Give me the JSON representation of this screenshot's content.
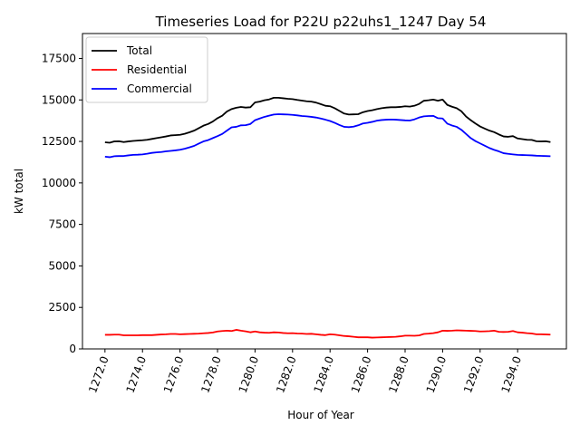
{
  "chart_data": {
    "type": "line",
    "title": "Timeseries Load for P22U p22uhs1_1247  Day 54",
    "xlabel": "Hour of Year",
    "ylabel": "kW total",
    "xlim": [
      1270.8,
      1296.6
    ],
    "ylim": [
      0,
      19000
    ],
    "xticks": [
      1272,
      1274,
      1276,
      1278,
      1280,
      1282,
      1284,
      1286,
      1288,
      1290,
      1292,
      1294
    ],
    "xtick_labels": [
      "1272.0",
      "1274.0",
      "1276.0",
      "1278.0",
      "1280.0",
      "1282.0",
      "1284.0",
      "1286.0",
      "1288.0",
      "1290.0",
      "1292.0",
      "1294.0"
    ],
    "yticks": [
      0,
      2500,
      5000,
      7500,
      10000,
      12500,
      15000,
      17500
    ],
    "ytick_labels": [
      "0",
      "2500",
      "5000",
      "7500",
      "10000",
      "12500",
      "15000",
      "17500"
    ],
    "legend_position": "upper-left",
    "x": [
      1272.0,
      1272.25,
      1272.5,
      1272.75,
      1273.0,
      1273.25,
      1273.5,
      1273.75,
      1274.0,
      1274.25,
      1274.5,
      1274.75,
      1275.0,
      1275.25,
      1275.5,
      1275.75,
      1276.0,
      1276.25,
      1276.5,
      1276.75,
      1277.0,
      1277.25,
      1277.5,
      1277.75,
      1278.0,
      1278.25,
      1278.5,
      1278.75,
      1279.0,
      1279.25,
      1279.5,
      1279.75,
      1280.0,
      1280.25,
      1280.5,
      1280.75,
      1281.0,
      1281.25,
      1281.5,
      1281.75,
      1282.0,
      1282.25,
      1282.5,
      1282.75,
      1283.0,
      1283.25,
      1283.5,
      1283.75,
      1284.0,
      1284.25,
      1284.5,
      1284.75,
      1285.0,
      1285.25,
      1285.5,
      1285.75,
      1286.0,
      1286.25,
      1286.5,
      1286.75,
      1287.0,
      1287.25,
      1287.5,
      1287.75,
      1288.0,
      1288.25,
      1288.5,
      1288.75,
      1289.0,
      1289.25,
      1289.5,
      1289.75,
      1290.0,
      1290.25,
      1290.5,
      1290.75,
      1291.0,
      1291.25,
      1291.5,
      1291.75,
      1292.0,
      1292.25,
      1292.5,
      1292.75,
      1293.0,
      1293.25,
      1293.5,
      1293.75,
      1294.0,
      1294.25,
      1294.5,
      1294.75,
      1295.0,
      1295.25,
      1295.5,
      1295.75
    ],
    "series": [
      {
        "name": "Total",
        "color": "#000000",
        "values": [
          12450,
          12420,
          12500,
          12510,
          12460,
          12500,
          12530,
          12550,
          12570,
          12600,
          12650,
          12700,
          12750,
          12800,
          12860,
          12880,
          12900,
          12960,
          13050,
          13150,
          13300,
          13450,
          13550,
          13700,
          13900,
          14050,
          14300,
          14450,
          14530,
          14580,
          14540,
          14560,
          14850,
          14900,
          14980,
          15030,
          15130,
          15130,
          15100,
          15070,
          15050,
          15000,
          14960,
          14920,
          14900,
          14840,
          14750,
          14650,
          14620,
          14500,
          14340,
          14180,
          14120,
          14130,
          14140,
          14260,
          14330,
          14380,
          14450,
          14500,
          14540,
          14560,
          14560,
          14580,
          14620,
          14600,
          14650,
          14760,
          14950,
          14980,
          15020,
          14950,
          15020,
          14700,
          14590,
          14500,
          14320,
          14000,
          13780,
          13580,
          13400,
          13270,
          13150,
          13060,
          12920,
          12800,
          12780,
          12820,
          12680,
          12640,
          12600,
          12590,
          12510,
          12500,
          12510,
          12460
        ]
      },
      {
        "name": "Residential",
        "color": "#ff0000",
        "values": [
          850,
          850,
          860,
          860,
          820,
          820,
          820,
          820,
          830,
          830,
          830,
          850,
          870,
          880,
          900,
          900,
          880,
          890,
          900,
          910,
          920,
          940,
          960,
          990,
          1050,
          1080,
          1100,
          1080,
          1150,
          1100,
          1060,
          1000,
          1050,
          1000,
          980,
          970,
          1000,
          990,
          960,
          940,
          950,
          930,
          920,
          900,
          910,
          880,
          850,
          830,
          880,
          860,
          820,
          780,
          760,
          730,
          700,
          700,
          700,
          680,
          690,
          700,
          710,
          720,
          730,
          760,
          800,
          800,
          790,
          810,
          900,
          920,
          950,
          1000,
          1100,
          1090,
          1100,
          1120,
          1110,
          1100,
          1090,
          1080,
          1050,
          1060,
          1070,
          1100,
          1030,
          1020,
          1030,
          1080,
          1000,
          980,
          950,
          930,
          880,
          880,
          870,
          860
        ]
      },
      {
        "name": "Commercial",
        "color": "#0000ff",
        "values": [
          11580,
          11550,
          11610,
          11620,
          11620,
          11660,
          11690,
          11700,
          11720,
          11760,
          11810,
          11840,
          11860,
          11900,
          11930,
          11960,
          12000,
          12060,
          12140,
          12230,
          12370,
          12500,
          12580,
          12700,
          12820,
          12950,
          13150,
          13350,
          13380,
          13470,
          13480,
          13550,
          13780,
          13880,
          13980,
          14050,
          14120,
          14140,
          14130,
          14120,
          14100,
          14070,
          14030,
          14010,
          13980,
          13940,
          13880,
          13810,
          13730,
          13620,
          13490,
          13380,
          13360,
          13390,
          13470,
          13580,
          13620,
          13680,
          13750,
          13790,
          13810,
          13820,
          13810,
          13790,
          13770,
          13760,
          13830,
          13940,
          14010,
          14030,
          14040,
          13900,
          13880,
          13570,
          13460,
          13380,
          13200,
          12950,
          12700,
          12520,
          12380,
          12240,
          12100,
          11990,
          11900,
          11790,
          11750,
          11720,
          11690,
          11680,
          11670,
          11660,
          11640,
          11630,
          11620,
          11610
        ]
      }
    ]
  }
}
